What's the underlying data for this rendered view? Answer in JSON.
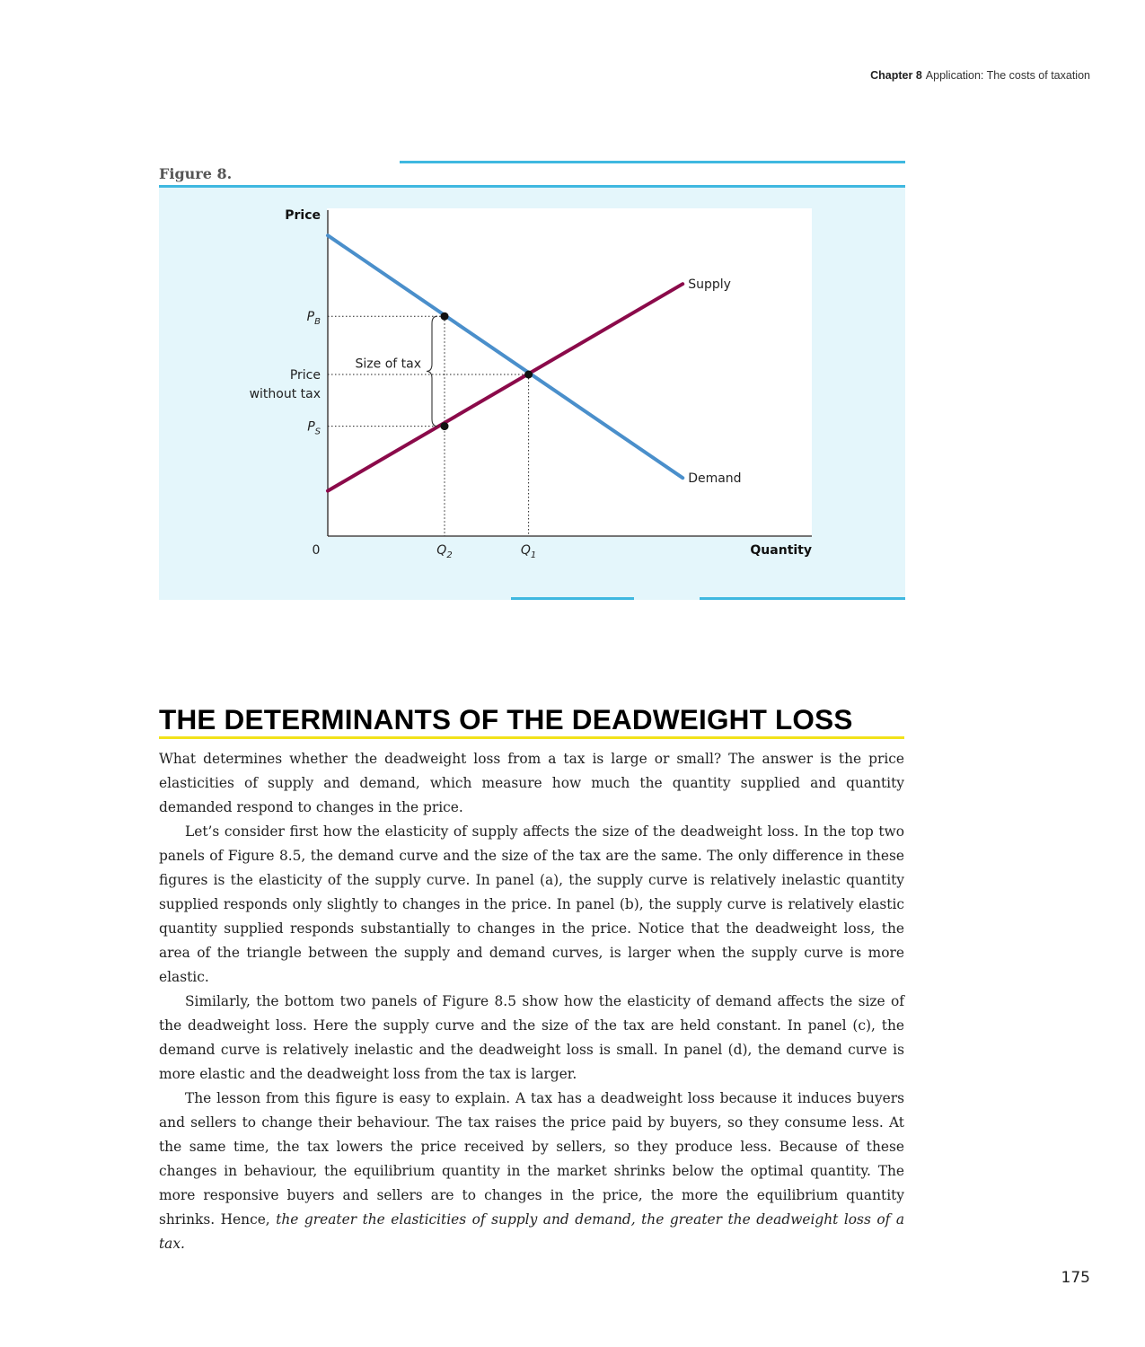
{
  "running_head": {
    "chapter": "Chapter 8",
    "title": "Application: The costs of taxation"
  },
  "figure": {
    "label": "Figure 8.",
    "colors": {
      "panel": "#e4f6fb",
      "rule": "#3fb8e0",
      "demand": "#4a8fcb",
      "supply": "#8b0a4a"
    },
    "chart_data": {
      "type": "line",
      "ylabel": "Price",
      "xlabel": "Quantity",
      "origin_label": "0",
      "xlim": [
        0,
        10
      ],
      "ylim": [
        0,
        10
      ],
      "series": [
        {
          "name": "Supply",
          "x": [
            0,
            7.6
          ],
          "y": [
            1.4,
            7.8
          ]
        },
        {
          "name": "Demand",
          "x": [
            0,
            7.6
          ],
          "y": [
            9.3,
            1.8
          ]
        }
      ],
      "y_ticks": [
        {
          "label": "P",
          "sub": "B",
          "value": 6.8
        },
        {
          "label": "Price",
          "label2": "without tax",
          "value": 5.0
        },
        {
          "label": "P",
          "sub": "S",
          "value": 3.4
        }
      ],
      "x_ticks": [
        {
          "label": "Q",
          "sub": "2",
          "value": 2.5
        },
        {
          "label": "Q",
          "sub": "1",
          "value": 4.3
        }
      ],
      "points": [
        {
          "x": 2.5,
          "y": 6.8
        },
        {
          "x": 2.5,
          "y": 3.4
        },
        {
          "x": 4.3,
          "y": 5.0
        }
      ],
      "annotations": {
        "tax_brace": "Size of tax"
      }
    }
  },
  "section": {
    "heading": "THE DETERMINANTS OF THE DEADWEIGHT LOSS",
    "paragraphs": [
      "What determines whether the deadweight loss from a tax is large or small? The answer is the price elasticities of supply and demand, which measure how much the quantity supplied and quantity demanded respond to changes in the price.",
      "Let’s consider first how the elasticity of supply affects the size of the deadweight loss. In the top two panels of Figure 8.5, the demand curve and the size of the tax are the same. The only difference in these figures is the elasticity of the supply curve. In panel (a), the supply curve is relatively inelastic   quantity supplied responds only slightly to changes in the price. In panel (b), the supply curve is relatively elastic  quantity supplied responds substantially to changes in the price. Notice that the deadweight loss, the area of the triangle between the supply and demand curves, is larger when the supply curve is more elastic.",
      "Similarly, the bottom two panels of Figure 8.5 show how the elasticity of demand affects the size of the deadweight loss. Here the supply curve and the size of the tax are held constant. In panel (c), the demand curve is relatively inelastic and the deadweight loss is small. In panel (d), the demand curve is more elastic and the deadweight loss from the tax is larger."
    ],
    "last_paragraph": {
      "plain": "The lesson from this figure is easy to explain. A tax has a deadweight loss because it induces buyers and sellers to change their behaviour. The tax raises the price paid by buyers, so they consume less. At the same time, the tax lowers the price received by sellers, so they produce less. Because of these changes in behaviour, the equilibrium quantity in the market shrinks below the optimal quantity. The more responsive buyers and sellers are to changes in the price, the more the equilibrium quantity shrinks. Hence, ",
      "emphasis": "the greater the elasticities of supply and demand, the greater the deadweight loss of a tax."
    }
  },
  "page_number": "175"
}
